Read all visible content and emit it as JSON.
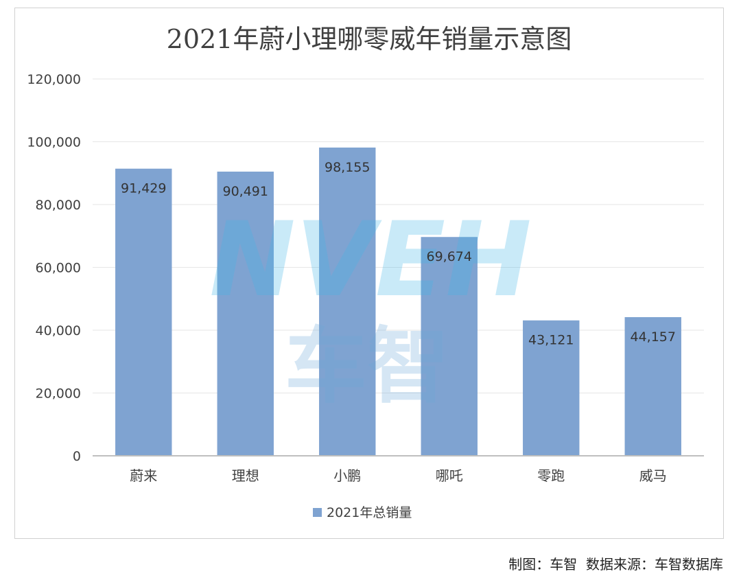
{
  "chart_data": {
    "type": "bar",
    "title": "2021年蔚小理哪零威年销量示意图",
    "categories": [
      "蔚来",
      "理想",
      "小鹏",
      "哪吒",
      "零跑",
      "威马"
    ],
    "series": [
      {
        "name": "2021年总销量",
        "values": [
          91429,
          90491,
          98155,
          69674,
          43121,
          44157
        ]
      }
    ],
    "data_labels": [
      "91,429",
      "90,491",
      "98,155",
      "69,674",
      "43,121",
      "44,157"
    ],
    "y_ticks": [
      "0",
      "20,000",
      "40,000",
      "60,000",
      "80,000",
      "100,000",
      "120,000"
    ],
    "ylim": [
      0,
      120000
    ],
    "xlabel": "",
    "ylabel": "",
    "grid": true,
    "legend": "bottom-center",
    "bar_color": "#7fa3d1"
  },
  "watermark": {
    "text_top": "NVEH",
    "text_bottom": "车智"
  },
  "credit": "制图：车智  数据来源：车智数据库"
}
